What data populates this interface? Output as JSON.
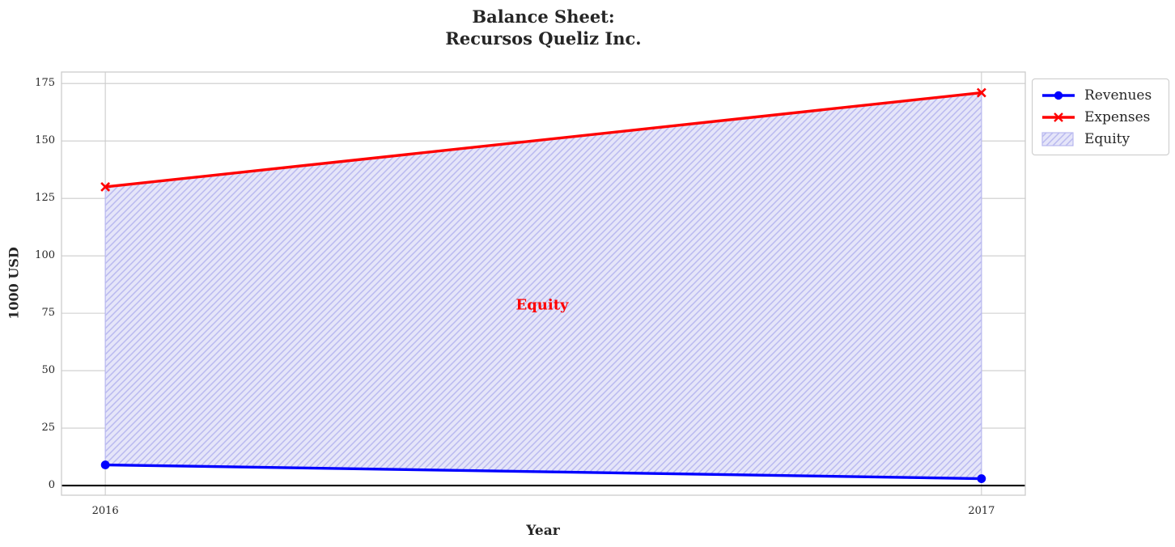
{
  "figure": {
    "title_line1": "Balance Sheet:",
    "title_line2": "Recursos Queliz Inc.",
    "xlabel": "Year",
    "ylabel": "1000 USD",
    "annotation": "Equity"
  },
  "legend": {
    "items": [
      {
        "label": "Revenues",
        "type": "line-circle",
        "color": "#0000ff"
      },
      {
        "label": "Expenses",
        "type": "line-x",
        "color": "#ff0000"
      },
      {
        "label": "Equity",
        "type": "hatch-patch",
        "fill_color": "#e5e5f9",
        "hatch_color": "#b9b9ef"
      }
    ]
  },
  "chart_data": {
    "type": "line",
    "title": "Balance Sheet:\nRecursos Queliz Inc.",
    "xlabel": "Year",
    "ylabel": "1000 USD",
    "x": [
      2016,
      2017
    ],
    "series": [
      {
        "name": "Revenues",
        "values": [
          9,
          3
        ],
        "color": "#0000ff",
        "marker": "circle"
      },
      {
        "name": "Expenses",
        "values": [
          130,
          171
        ],
        "color": "#ff0000",
        "marker": "x"
      }
    ],
    "fill_between": {
      "label": "Equity",
      "upper_series": "Expenses",
      "lower_series": "Revenues",
      "fill_color": "#e5e5f9",
      "hatch_color": "#b9b9ef",
      "hatch": "/"
    },
    "zero_line": {
      "y": 0,
      "color": "#000000"
    },
    "xticks": [
      2016,
      2017
    ],
    "yticks": [
      0,
      25,
      50,
      75,
      100,
      125,
      150,
      175
    ],
    "xlim": [
      2015.95,
      2017.05
    ],
    "ylim": [
      -4.2,
      180
    ],
    "grid": true,
    "grid_color": "#cccccc",
    "spine_color": "#cccccc",
    "legend_position": "upper-right-outside"
  }
}
